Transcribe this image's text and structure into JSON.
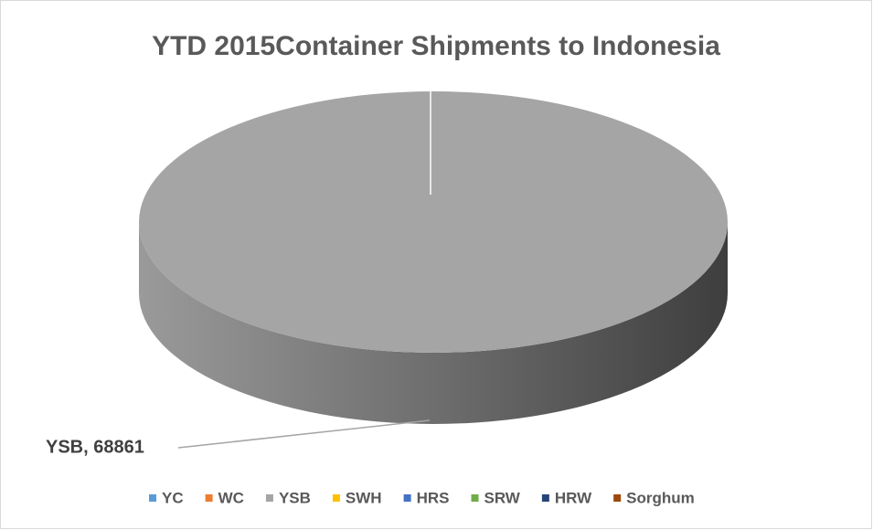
{
  "chart_data": {
    "type": "pie",
    "title": "YTD 2015Container Shipments to Indonesia",
    "categories": [
      "YC",
      "WC",
      "YSB",
      "SWH",
      "HRS",
      "SRW",
      "HRW",
      "Sorghum"
    ],
    "values": [
      0,
      0,
      68861,
      0,
      0,
      0,
      0,
      0
    ],
    "value_labels": [
      null,
      null,
      "YSB, 68861",
      null,
      null,
      null,
      null,
      null
    ],
    "colors": [
      "#5b9bd5",
      "#ed7d31",
      "#a5a5a5",
      "#ffc000",
      "#4472c4",
      "#70ad47",
      "#264478",
      "#9e480e"
    ],
    "legend": "bottom"
  }
}
